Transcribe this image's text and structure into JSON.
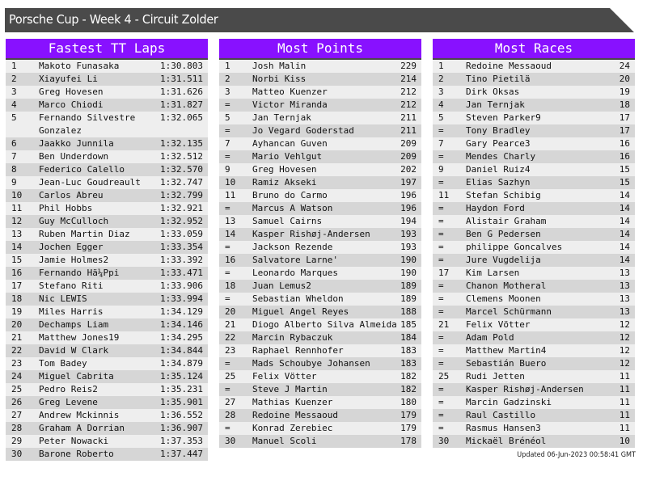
{
  "title": "Porsche Cup - Week 4 - Circuit Zolder",
  "colors": {
    "header": "#8811ff",
    "titlebar": "#4a4a4a",
    "row_light": "#eeeeee",
    "row_dark": "#d6d6d6"
  },
  "tables": [
    {
      "title": "Fastest TT Laps",
      "rows": [
        [
          "1",
          "Makoto Funasaka",
          "1:30.803"
        ],
        [
          "2",
          "Xiayufei Li",
          "1:31.511"
        ],
        [
          "3",
          "Greg Hovesen",
          "1:31.626"
        ],
        [
          "4",
          "Marco Chiodi",
          "1:31.827"
        ],
        [
          "5",
          "Fernando Silvestre Gonzalez",
          "1:32.065"
        ],
        [
          "6",
          "Jaakko Junnila",
          "1:32.135"
        ],
        [
          "7",
          "Ben Underdown",
          "1:32.512"
        ],
        [
          "8",
          "Federico Calello",
          "1:32.570"
        ],
        [
          "9",
          "Jean-Luc Goudreault",
          "1:32.747"
        ],
        [
          "10",
          "Carlos Abreu",
          "1:32.799"
        ],
        [
          "11",
          "Phil Hobbs",
          "1:32.921"
        ],
        [
          "12",
          "Guy McCulloch",
          "1:32.952"
        ],
        [
          "13",
          "Ruben Martin Diaz",
          "1:33.059"
        ],
        [
          "14",
          "Jochen Egger",
          "1:33.354"
        ],
        [
          "15",
          "Jamie Holmes2",
          "1:33.392"
        ],
        [
          "16",
          "Fernando Hä¼Ppi",
          "1:33.471"
        ],
        [
          "17",
          "Stefano Riti",
          "1:33.906"
        ],
        [
          "18",
          "Nic LEWIS",
          "1:33.994"
        ],
        [
          "19",
          "Miles Harris",
          "1:34.129"
        ],
        [
          "20",
          "Dechamps Liam",
          "1:34.146"
        ],
        [
          "21",
          "Matthew Jones19",
          "1:34.295"
        ],
        [
          "22",
          "David W Clark",
          "1:34.844"
        ],
        [
          "23",
          "Tom Badey",
          "1:34.879"
        ],
        [
          "24",
          "Miguel Cabrita",
          "1:35.124"
        ],
        [
          "25",
          "Pedro Reis2",
          "1:35.231"
        ],
        [
          "26",
          "Greg Levene",
          "1:35.901"
        ],
        [
          "27",
          "Andrew Mckinnis",
          "1:36.552"
        ],
        [
          "28",
          "Graham A Dorrian",
          "1:36.907"
        ],
        [
          "29",
          "Peter Nowacki",
          "1:37.353"
        ],
        [
          "30",
          "Barone Roberto",
          "1:37.447"
        ]
      ]
    },
    {
      "title": "Most Points",
      "rows": [
        [
          "1",
          "Josh Malin",
          "229"
        ],
        [
          "2",
          "Norbi Kiss",
          "214"
        ],
        [
          "3",
          "Matteo Kuenzer",
          "212"
        ],
        [
          "=",
          "Victor Miranda",
          "212"
        ],
        [
          "5",
          "Jan Ternjak",
          "211"
        ],
        [
          "=",
          "Jo Vegard Goderstad",
          "211"
        ],
        [
          "7",
          "Ayhancan Guven",
          "209"
        ],
        [
          "=",
          "Mario Vehlgut",
          "209"
        ],
        [
          "9",
          "Greg Hovesen",
          "202"
        ],
        [
          "10",
          "Ramiz Akseki",
          "197"
        ],
        [
          "11",
          "Bruno do Carmo",
          "196"
        ],
        [
          "=",
          "Marcus A Watson",
          "196"
        ],
        [
          "13",
          "Samuel Cairns",
          "194"
        ],
        [
          "14",
          "Kasper Rishøj-Andersen",
          "193"
        ],
        [
          "=",
          "Jackson Rezende",
          "193"
        ],
        [
          "16",
          "Salvatore Larne'",
          "190"
        ],
        [
          "=",
          "Leonardo Marques",
          "190"
        ],
        [
          "18",
          "Juan Lemus2",
          "189"
        ],
        [
          "=",
          "Sebastian Wheldon",
          "189"
        ],
        [
          "20",
          "Miguel Angel Reyes",
          "188"
        ],
        [
          "21",
          "Diogo Alberto Silva Almeida",
          "185"
        ],
        [
          "22",
          "Marcin Rybaczuk",
          "184"
        ],
        [
          "23",
          "Raphael Rennhofer",
          "183"
        ],
        [
          "=",
          "Mads Schoubye Johansen",
          "183"
        ],
        [
          "25",
          "Felix Vötter",
          "182"
        ],
        [
          "=",
          "Steve J Martin",
          "182"
        ],
        [
          "27",
          "Mathias Kuenzer",
          "180"
        ],
        [
          "28",
          "Redoine Messaoud",
          "179"
        ],
        [
          "=",
          "Konrad Zerebiec",
          "179"
        ],
        [
          "30",
          "Manuel Scoli",
          "178"
        ]
      ]
    },
    {
      "title": "Most Races",
      "rows": [
        [
          "1",
          "Redoine Messaoud",
          "24"
        ],
        [
          "2",
          "Tino Pietilä",
          "20"
        ],
        [
          "3",
          "Dirk Oksas",
          "19"
        ],
        [
          "4",
          "Jan Ternjak",
          "18"
        ],
        [
          "5",
          "Steven Parker9",
          "17"
        ],
        [
          "=",
          "Tony Bradley",
          "17"
        ],
        [
          "7",
          "Gary Pearce3",
          "16"
        ],
        [
          "=",
          "Mendes Charly",
          "16"
        ],
        [
          "9",
          "Daniel Ruiz4",
          "15"
        ],
        [
          "=",
          "Elias Sazhyn",
          "15"
        ],
        [
          "11",
          "Stefan Schibig",
          "14"
        ],
        [
          "=",
          "Haydon Ford",
          "14"
        ],
        [
          "=",
          "Alistair Graham",
          "14"
        ],
        [
          "=",
          "Ben G Pedersen",
          "14"
        ],
        [
          "=",
          "philippe Goncalves",
          "14"
        ],
        [
          "=",
          "Jure Vugdelija",
          "14"
        ],
        [
          "17",
          "Kim Larsen",
          "13"
        ],
        [
          "=",
          "Chanon Motheral",
          "13"
        ],
        [
          "=",
          "Clemens Moonen",
          "13"
        ],
        [
          "=",
          "Marcel Schürmann",
          "13"
        ],
        [
          "21",
          "Felix Vötter",
          "12"
        ],
        [
          "=",
          "Adam Pold",
          "12"
        ],
        [
          "=",
          "Matthew Martin4",
          "12"
        ],
        [
          "=",
          "Sebastián Buero",
          "12"
        ],
        [
          "25",
          "Rudi Jetten",
          "11"
        ],
        [
          "=",
          "Kasper Rishøj-Andersen",
          "11"
        ],
        [
          "=",
          "Marcin Gadzinski",
          "11"
        ],
        [
          "=",
          "Raul Castillo",
          "11"
        ],
        [
          "=",
          "Rasmus Hansen3",
          "11"
        ],
        [
          "30",
          "Mickaël Brénéol",
          "10"
        ]
      ]
    }
  ],
  "updated": "Updated 06-Jun-2023 00:58:41 GMT"
}
